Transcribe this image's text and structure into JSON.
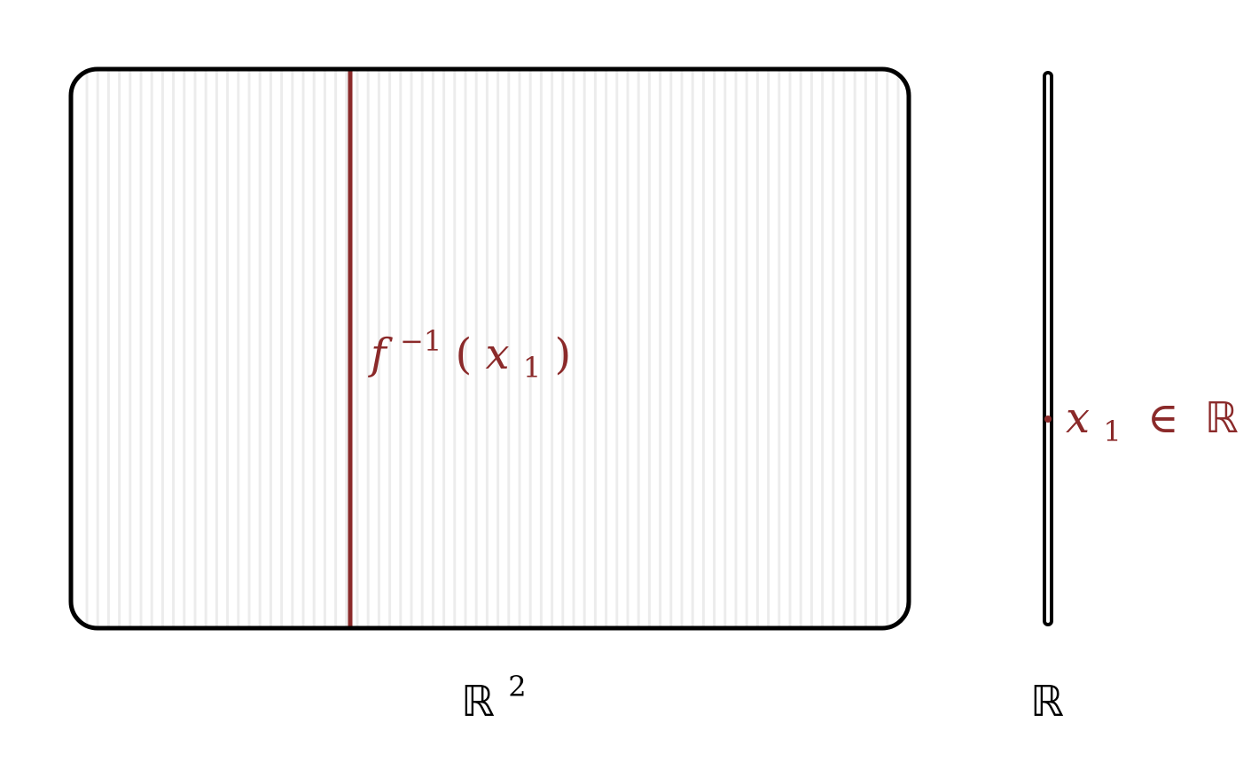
{
  "colors": {
    "outline": "#000000",
    "accent": "#8b2a2a",
    "stripe": "#ececec"
  },
  "domain_space": {
    "label_symbol": "ℝ",
    "label_exponent": "2"
  },
  "codomain_space": {
    "label_symbol": "ℝ"
  },
  "fiber": {
    "label_f": "f",
    "label_exponent": "−1",
    "label_open": "(",
    "label_x": "x",
    "label_sub": "1",
    "label_close": ")"
  },
  "point": {
    "label_x": "x",
    "label_sub": "1",
    "label_in": "∈",
    "label_set": "ℝ"
  }
}
